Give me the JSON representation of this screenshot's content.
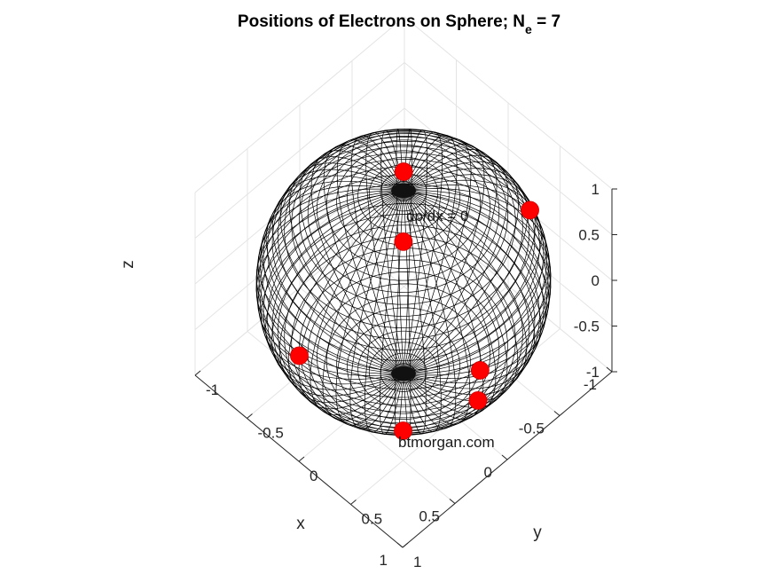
{
  "chart_data": {
    "type": "scatter",
    "title_main": "Positions of Electrons on Sphere; N",
    "title_sub": "e",
    "title_tail": " = 7",
    "xlabel": "x",
    "ylabel": "y",
    "zlabel": "z",
    "xlim": [
      -1,
      1
    ],
    "ylim": [
      -1,
      1
    ],
    "zlim": [
      -1,
      1
    ],
    "x_ticks": [
      "-1",
      "-0.5",
      "0",
      "0.5",
      "1"
    ],
    "y_ticks": [
      "-1",
      "-0.5",
      "0",
      "0.5",
      "1"
    ],
    "z_ticks": [
      "-1",
      "-0.5",
      "0",
      "0.5",
      "1"
    ],
    "grid": true,
    "sphere": "unit sphere wireframe mesh",
    "marker_color": "#ff0000",
    "points": [
      {
        "x": -0.12,
        "y": -0.12,
        "z": 0.98
      },
      {
        "x": 0.13,
        "y": 0.13,
        "z": 0.69
      },
      {
        "x": -0.96,
        "y": 0.25,
        "z": 0.1
      },
      {
        "x": 0.22,
        "y": 0.96,
        "z": 0.15
      },
      {
        "x": 0.45,
        "y": 0.45,
        "z": -0.77
      },
      {
        "x": 0.55,
        "y": -0.45,
        "z": -0.7
      },
      {
        "x": 0.24,
        "y": 0.96,
        "z": -0.16
      }
    ],
    "annotation": "dp/dx = 0",
    "watermark": "btmorgan.com"
  }
}
